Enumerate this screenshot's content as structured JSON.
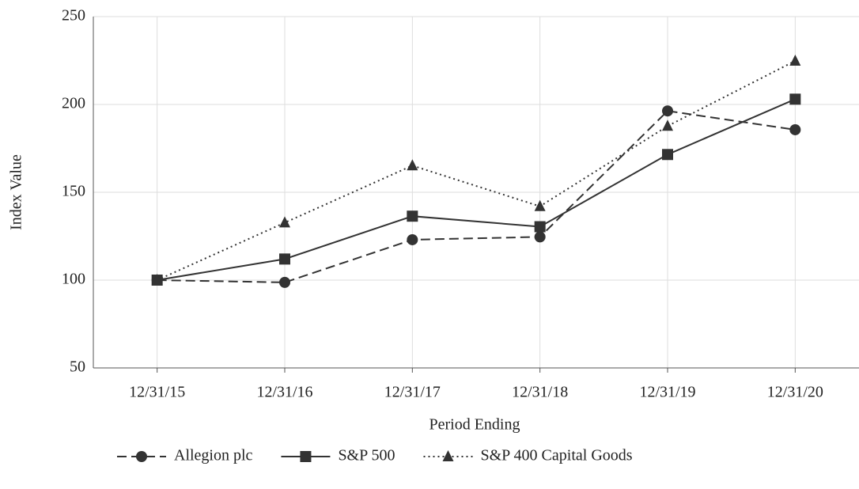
{
  "chart_data": {
    "type": "line",
    "x_label": "Period Ending",
    "y_label": "Index Value",
    "categories": [
      "12/31/15",
      "12/31/16",
      "12/31/17",
      "12/31/18",
      "12/31/19",
      "12/31/20"
    ],
    "series": [
      {
        "name": "Allegion plc",
        "color": "#333333",
        "dash": "dashed",
        "marker": "circle",
        "values": [
          100,
          98.7,
          123.0,
          124.6,
          196.3,
          185.6
        ]
      },
      {
        "name": "S&P 500",
        "color": "#333333",
        "dash": "solid",
        "marker": "square",
        "values": [
          100,
          112.0,
          136.4,
          130.4,
          171.5,
          203.0
        ]
      },
      {
        "name": "S&P 400 Capital Goods",
        "color": "#333333",
        "dash": "dotted",
        "marker": "triangle",
        "values": [
          100,
          132.7,
          165.2,
          142.0,
          187.7,
          224.8
        ]
      }
    ],
    "ylim": [
      50,
      250
    ],
    "yticks": [
      50,
      100,
      150,
      200,
      250
    ],
    "grid": true,
    "legend": "bottom"
  }
}
